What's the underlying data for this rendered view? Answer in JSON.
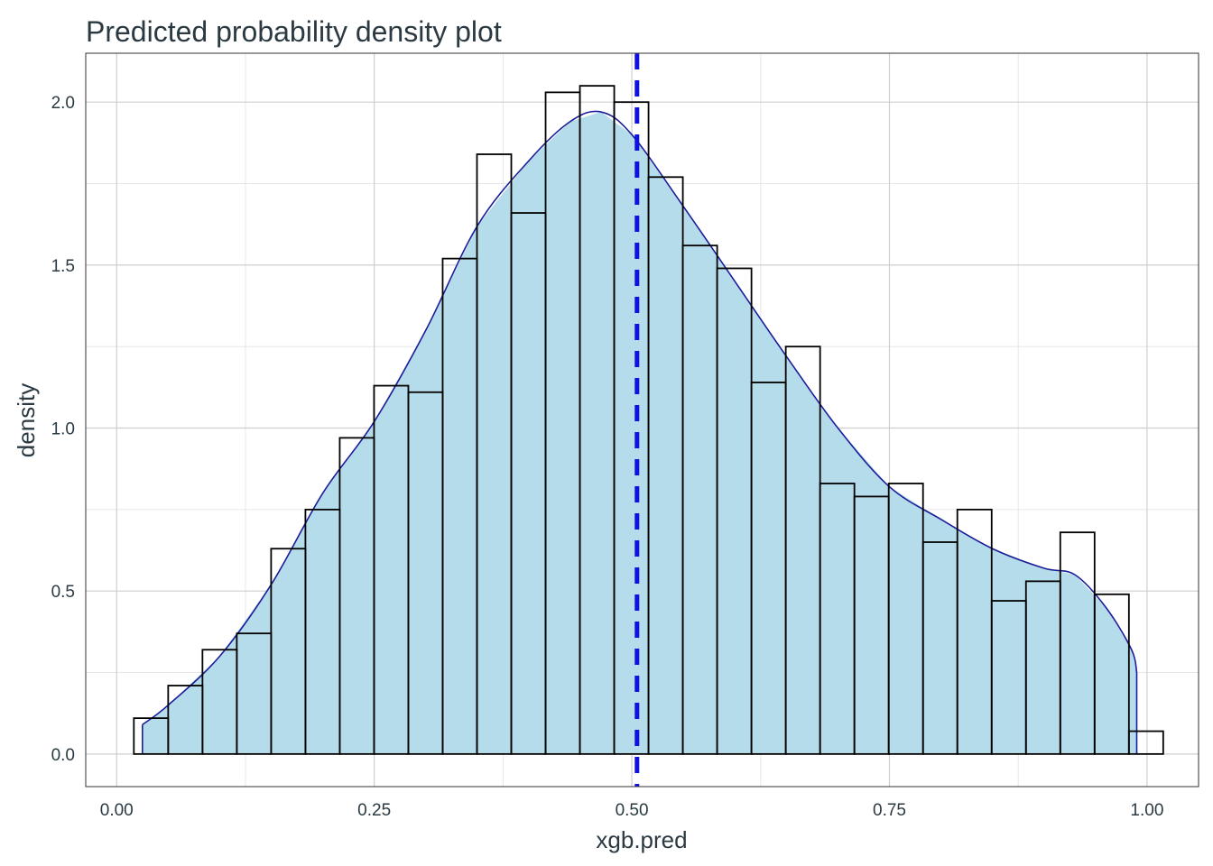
{
  "chart_data": {
    "type": "histogram",
    "title": "Predicted probability density plot",
    "xlabel": "xgb.pred",
    "ylabel": "density",
    "xlim": [
      -0.03,
      1.05
    ],
    "ylim": [
      -0.1,
      2.15
    ],
    "x_ticks": [
      0,
      0.25,
      0.5,
      0.75,
      1
    ],
    "x_tick_labels": [
      "0.00",
      "0.25",
      "0.50",
      "0.75",
      "1.00"
    ],
    "y_ticks": [
      0,
      0.5,
      1,
      1.5,
      2
    ],
    "y_tick_labels": [
      "0.0",
      "0.5",
      "1.0",
      "1.5",
      "2.0"
    ],
    "grid": true,
    "bin_start": 0.0167,
    "bin_width": 0.0333,
    "histogram_density": [
      0.11,
      0.21,
      0.32,
      0.37,
      0.63,
      0.75,
      0.97,
      1.13,
      1.11,
      1.52,
      1.84,
      1.66,
      2.03,
      2.05,
      2.0,
      1.77,
      1.56,
      1.49,
      1.14,
      1.25,
      0.83,
      0.79,
      0.83,
      0.65,
      0.75,
      0.47,
      0.53,
      0.68,
      0.49,
      0.07
    ],
    "kde_curve": {
      "x": [
        0.025,
        0.05,
        0.1,
        0.15,
        0.2,
        0.25,
        0.3,
        0.35,
        0.4,
        0.44,
        0.47,
        0.5,
        0.55,
        0.6,
        0.65,
        0.7,
        0.75,
        0.8,
        0.85,
        0.9,
        0.93,
        0.96,
        0.985,
        0.99
      ],
      "y": [
        0.09,
        0.15,
        0.3,
        0.52,
        0.8,
        1.02,
        1.3,
        1.62,
        1.82,
        1.94,
        1.97,
        1.9,
        1.68,
        1.45,
        1.22,
        1.0,
        0.82,
        0.72,
        0.63,
        0.57,
        0.55,
        0.45,
        0.32,
        0.25
      ],
      "fill_color": "#b5dcea",
      "line_color": "#1c1c99"
    },
    "mean_line": {
      "x": 0.505,
      "color": "#1010e0",
      "style": "dashed"
    },
    "bar_outline_color": "#000000"
  }
}
